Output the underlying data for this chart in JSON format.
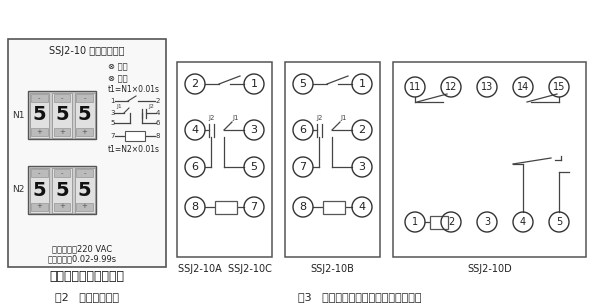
{
  "title": "SSJ2-10 型时间继电器",
  "fig2_label": "图2   继电器面板图",
  "fig3_label": "图3   继电器内部及端子接线图（背视）",
  "company": "上海上继科技有限公司",
  "voltage_text": "额定电压：220 VAC",
  "time_text": "延时范围：0.02-9.99s",
  "power_text": "⊗ 电源",
  "action_text": "⊗ 动作",
  "t1_n1": "t1=N1×0.01s",
  "t1_n2": "t1=N2×0.01s",
  "bg_color": "#ffffff",
  "diagram_labels_10AC": "SSJ2-10A  SSJ2-10C",
  "diagram_labels_10B": "SSJ2-10B",
  "diagram_labels_10D": "SSJ2-10D"
}
